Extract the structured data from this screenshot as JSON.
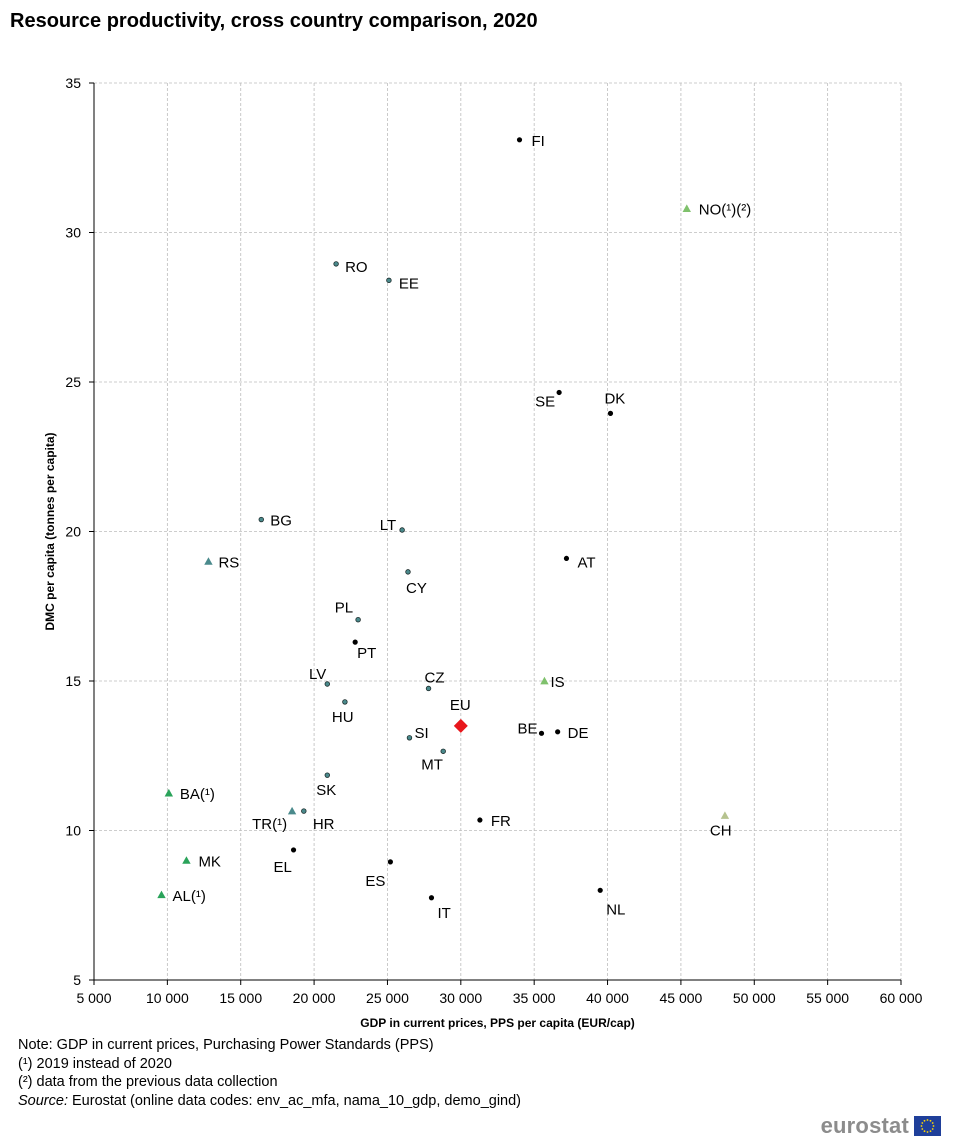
{
  "title": "Resource productivity, cross country comparison, 2020",
  "chart_data": {
    "type": "scatter",
    "title": "Resource productivity, cross country comparison, 2020",
    "xlabel": "GDP in current prices, PPS per capita (EUR/cap)",
    "ylabel": "DMC per capita (tonnes per capita)",
    "xlim": [
      5000,
      60000
    ],
    "ylim": [
      5,
      35
    ],
    "x_ticks": [
      "5 000",
      "10 000",
      "15 000",
      "20 000",
      "25 000",
      "30 000",
      "35 000",
      "40 000",
      "45 000",
      "50 000",
      "55 000",
      "60 000"
    ],
    "y_ticks": [
      "5",
      "10",
      "15",
      "20",
      "25",
      "30",
      "35"
    ],
    "grid": true,
    "colors": {
      "black_dot": "#000000",
      "teal_dot": "#4a8a8c",
      "eu_marker": "#e8171c",
      "green_triangle": "#2aa35a",
      "light_green_triangle": "#7fc16c",
      "olive_triangle": "#b6c38f",
      "grid": "#bdbdbd"
    },
    "points": [
      {
        "label": "FI",
        "x": 34000,
        "y": 33.1,
        "marker": "dot",
        "color": "#000000"
      },
      {
        "label": "NO(¹)(²)",
        "x": 45400,
        "y": 30.8,
        "marker": "triangle",
        "color": "#7fc16c"
      },
      {
        "label": "RO",
        "x": 21500,
        "y": 28.95,
        "marker": "dot",
        "color": "#4a8a8c"
      },
      {
        "label": "EE",
        "x": 25100,
        "y": 28.4,
        "marker": "dot",
        "color": "#4a8a8c"
      },
      {
        "label": "SE",
        "x": 36700,
        "y": 24.65,
        "marker": "dot",
        "color": "#000000"
      },
      {
        "label": "DK",
        "x": 40200,
        "y": 23.95,
        "marker": "dot",
        "color": "#000000"
      },
      {
        "label": "BG",
        "x": 16400,
        "y": 20.4,
        "marker": "dot",
        "color": "#4a8a8c"
      },
      {
        "label": "LT",
        "x": 26000,
        "y": 20.05,
        "marker": "dot",
        "color": "#4a8a8c"
      },
      {
        "label": "RS",
        "x": 12800,
        "y": 19.0,
        "marker": "triangle",
        "color": "#4a8a8c"
      },
      {
        "label": "AT",
        "x": 37200,
        "y": 19.1,
        "marker": "dot",
        "color": "#000000"
      },
      {
        "label": "CY",
        "x": 26400,
        "y": 18.65,
        "marker": "dot",
        "color": "#4a8a8c"
      },
      {
        "label": "PL",
        "x": 23000,
        "y": 17.05,
        "marker": "dot",
        "color": "#4a8a8c"
      },
      {
        "label": "PT",
        "x": 22800,
        "y": 16.3,
        "marker": "dot",
        "color": "#000000"
      },
      {
        "label": "LV",
        "x": 20900,
        "y": 14.9,
        "marker": "dot",
        "color": "#4a8a8c"
      },
      {
        "label": "CZ",
        "x": 27800,
        "y": 14.75,
        "marker": "dot",
        "color": "#4a8a8c"
      },
      {
        "label": "IS",
        "x": 35700,
        "y": 15.0,
        "marker": "triangle",
        "color": "#7fc16c"
      },
      {
        "label": "HU",
        "x": 22100,
        "y": 14.3,
        "marker": "dot",
        "color": "#4a8a8c"
      },
      {
        "label": "EU",
        "x": 30000,
        "y": 13.5,
        "marker": "diamond",
        "color": "#e8171c"
      },
      {
        "label": "SI",
        "x": 26500,
        "y": 13.1,
        "marker": "dot",
        "color": "#4a8a8c"
      },
      {
        "label": "BE",
        "x": 35500,
        "y": 13.25,
        "marker": "dot",
        "color": "#000000"
      },
      {
        "label": "DE",
        "x": 36600,
        "y": 13.3,
        "marker": "dot",
        "color": "#000000"
      },
      {
        "label": "MT",
        "x": 28800,
        "y": 12.65,
        "marker": "dot",
        "color": "#4a8a8c"
      },
      {
        "label": "SK",
        "x": 20900,
        "y": 11.85,
        "marker": "dot",
        "color": "#4a8a8c"
      },
      {
        "label": "BA(¹)",
        "x": 10100,
        "y": 11.25,
        "marker": "triangle",
        "color": "#2aa35a"
      },
      {
        "label": "TR(¹)",
        "x": 18500,
        "y": 10.65,
        "marker": "triangle",
        "color": "#4a8a8c"
      },
      {
        "label": "HR",
        "x": 19300,
        "y": 10.65,
        "marker": "dot",
        "color": "#4a8a8c"
      },
      {
        "label": "FR",
        "x": 31300,
        "y": 10.35,
        "marker": "dot",
        "color": "#000000"
      },
      {
        "label": "CH",
        "x": 48000,
        "y": 10.5,
        "marker": "triangle",
        "color": "#b6c38f"
      },
      {
        "label": "EL",
        "x": 18600,
        "y": 9.35,
        "marker": "dot",
        "color": "#000000"
      },
      {
        "label": "MK",
        "x": 11300,
        "y": 9.0,
        "marker": "triangle",
        "color": "#2aa35a"
      },
      {
        "label": "ES",
        "x": 25200,
        "y": 8.95,
        "marker": "dot",
        "color": "#000000"
      },
      {
        "label": "NL",
        "x": 39500,
        "y": 8.0,
        "marker": "dot",
        "color": "#000000"
      },
      {
        "label": "AL(¹)",
        "x": 9600,
        "y": 7.85,
        "marker": "triangle",
        "color": "#2aa35a"
      },
      {
        "label": "IT",
        "x": 28000,
        "y": 7.75,
        "marker": "dot",
        "color": "#000000"
      }
    ]
  },
  "notes": {
    "line1": "Note: GDP in current prices, Purchasing Power Standards (PPS)",
    "line2": "(¹) 2019 instead of 2020",
    "line3": "(²) data from the previous data collection",
    "source_label": "Source:",
    "source_text": " Eurostat (online data codes: env_ac_mfa, nama_10_gdp, demo_gind)"
  },
  "logo": {
    "text": "eurostat"
  }
}
